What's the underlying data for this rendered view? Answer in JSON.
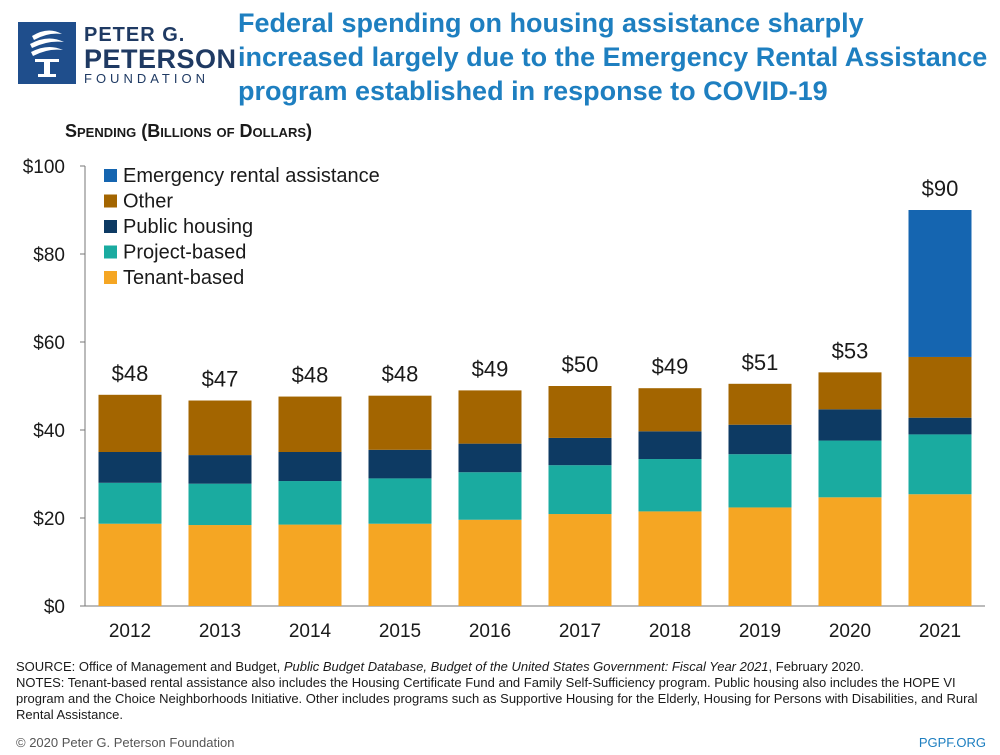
{
  "logo": {
    "line1": "PETER G.",
    "line2": "PETERSON",
    "line3": "FOUNDATION"
  },
  "title": "Federal spending on housing assistance sharply increased largely due to the Emergency Rental Assistance program established in response to COVID-19",
  "chart_data": {
    "type": "bar",
    "stacked": true,
    "ylabel": "Spending (Billions of Dollars)",
    "xlabel": "",
    "ylim": [
      0,
      100
    ],
    "yticks": [
      0,
      20,
      40,
      60,
      80,
      100
    ],
    "ytick_labels": [
      "$0",
      "$20",
      "$40",
      "$60",
      "$80",
      "$100"
    ],
    "categories": [
      "2012",
      "2013",
      "2014",
      "2015",
      "2016",
      "2017",
      "2018",
      "2019",
      "2020",
      "2021"
    ],
    "totals": [
      "$48",
      "$47",
      "$48",
      "$48",
      "$49",
      "$50",
      "$49",
      "$51",
      "$53",
      "$90"
    ],
    "legend_position": "top-left",
    "series": [
      {
        "name": "Tenant-based",
        "color": "#f5a623",
        "values": [
          18.7,
          18.4,
          18.5,
          18.7,
          19.6,
          20.9,
          21.5,
          22.4,
          24.7,
          25.4
        ]
      },
      {
        "name": "Project-based",
        "color": "#1aaba0",
        "values": [
          9.3,
          9.4,
          9.9,
          10.3,
          10.8,
          11.1,
          11.9,
          12.1,
          12.9,
          13.6
        ]
      },
      {
        "name": "Public housing",
        "color": "#0d3a63",
        "values": [
          7.0,
          6.5,
          6.6,
          6.5,
          6.5,
          6.2,
          6.3,
          6.7,
          7.1,
          3.8
        ]
      },
      {
        "name": "Other",
        "color": "#a36500",
        "values": [
          13.0,
          12.4,
          12.6,
          12.3,
          12.1,
          11.8,
          9.8,
          9.3,
          8.4,
          13.8
        ]
      },
      {
        "name": "Emergency rental assistance",
        "color": "#1565b0",
        "values": [
          0,
          0,
          0,
          0,
          0,
          0,
          0,
          0,
          0,
          33.4
        ]
      }
    ]
  },
  "footnotes": {
    "source_prefix": "SOURCE: Office of Management and Budget, ",
    "source_italic": "Public Budget Database, Budget of the United States Government: Fiscal Year 2021",
    "source_suffix": ", February 2020.",
    "notes": "NOTES: Tenant-based rental assistance also includes the Housing Certificate Fund and Family Self-Sufficiency program. Public housing also includes the HOPE VI program and the Choice Neighborhoods Initiative. Other includes programs such as Supportive Housing for the Elderly, Housing for Persons with Disabilities, and Rural Rental Assistance."
  },
  "copyright": "© 2020 Peter G. Peterson Foundation",
  "site": "PGPF.ORG"
}
